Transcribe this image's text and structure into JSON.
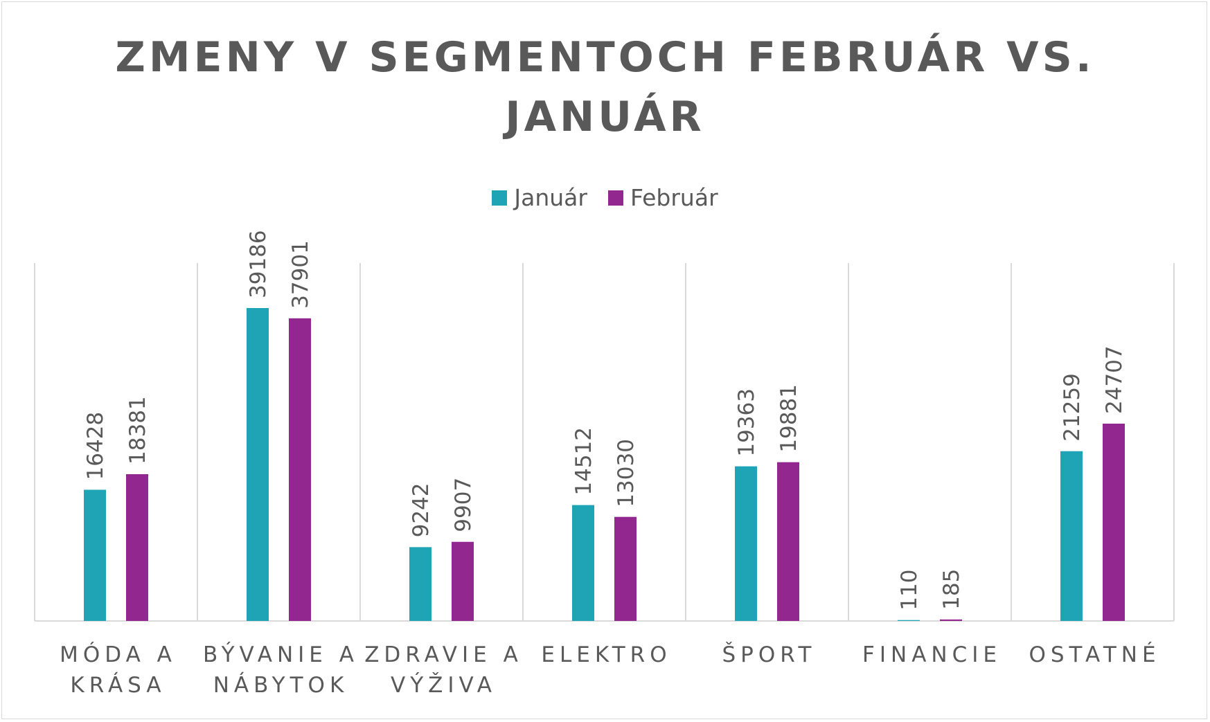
{
  "chart_data": {
    "type": "bar",
    "title": [
      "ZMENY V SEGMENTOCH FEBRUÁR VS.",
      "JANUÁR"
    ],
    "xlabel": "",
    "ylabel": "",
    "grid": "vertical category separators",
    "legend_position": "top",
    "categories": [
      [
        "MÓDA A",
        "KRÁSA"
      ],
      [
        "BÝVANIE A",
        "NÁBYTOK"
      ],
      [
        "ZDRAVIE A",
        "VÝŽIVA"
      ],
      [
        "ELEKTRO"
      ],
      [
        "ŠPORT"
      ],
      [
        "FINANCIE"
      ],
      [
        "OSTATNÉ"
      ]
    ],
    "series": [
      {
        "name": "Január",
        "color": "#1FA4B5",
        "values": [
          16428,
          39186,
          9242,
          14512,
          19363,
          110,
          21259
        ]
      },
      {
        "name": "Február",
        "color": "#92278F",
        "values": [
          18381,
          37901,
          9907,
          13030,
          19881,
          185,
          24707
        ]
      }
    ],
    "ylim": [
      0,
      45000
    ]
  }
}
